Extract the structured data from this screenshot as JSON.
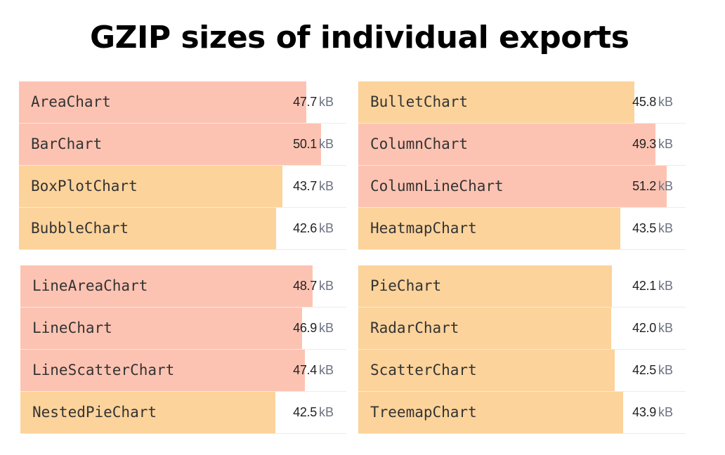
{
  "title": "GZIP sizes of individual exports",
  "colors": {
    "large": "#fdc3b2",
    "small": "#fcd39b"
  },
  "chart_data": [
    {
      "type": "bar",
      "unit": "kB",
      "xlim": [
        0,
        54.3
      ],
      "categories": [
        "AreaChart",
        "BarChart",
        "BoxPlotChart",
        "BubbleChart"
      ],
      "values": [
        47.7,
        50.1,
        43.7,
        42.6
      ],
      "value_labels": [
        "47.7",
        "50.1",
        "43.7",
        "42.6"
      ]
    },
    {
      "type": "bar",
      "unit": "kB",
      "xlim": [
        0,
        54.3
      ],
      "categories": [
        "BulletChart",
        "ColumnChart",
        "ColumnLineChart",
        "HeatmapChart"
      ],
      "values": [
        45.8,
        49.3,
        51.2,
        43.5
      ],
      "value_labels": [
        "45.8",
        "49.3",
        "51.2",
        "43.5"
      ]
    },
    {
      "type": "bar",
      "unit": "kB",
      "xlim": [
        0,
        54.3
      ],
      "categories": [
        "LineAreaChart",
        "LineChart",
        "LineScatterChart",
        "NestedPieChart"
      ],
      "values": [
        48.7,
        46.9,
        47.4,
        42.5
      ],
      "value_labels": [
        "48.7",
        "46.9",
        "47.4",
        "42.5"
      ]
    },
    {
      "type": "bar",
      "unit": "kB",
      "xlim": [
        0,
        54.3
      ],
      "categories": [
        "PieChart",
        "RadarChart",
        "ScatterChart",
        "TreemapChart"
      ],
      "values": [
        42.1,
        42.0,
        42.5,
        43.9
      ],
      "value_labels": [
        "42.1",
        "42.0",
        "42.5",
        "43.9"
      ]
    }
  ]
}
